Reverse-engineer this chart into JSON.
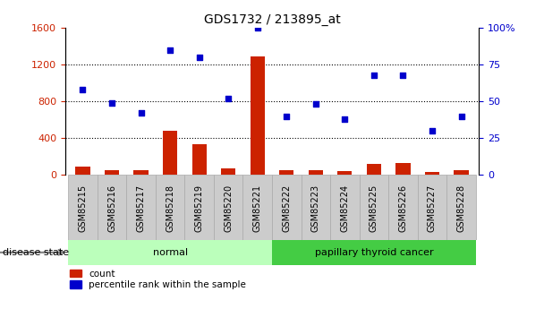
{
  "title": "GDS1732 / 213895_at",
  "samples": [
    "GSM85215",
    "GSM85216",
    "GSM85217",
    "GSM85218",
    "GSM85219",
    "GSM85220",
    "GSM85221",
    "GSM85222",
    "GSM85223",
    "GSM85224",
    "GSM85225",
    "GSM85226",
    "GSM85227",
    "GSM85228"
  ],
  "count_values": [
    90,
    55,
    50,
    480,
    330,
    75,
    1290,
    55,
    55,
    40,
    120,
    130,
    30,
    55
  ],
  "percentile_values": [
    58,
    49,
    42,
    85,
    80,
    52,
    100,
    40,
    48,
    38,
    68,
    68,
    30,
    40
  ],
  "groups": [
    {
      "label": "normal",
      "start": 0,
      "end": 7,
      "color": "#bbffbb"
    },
    {
      "label": "papillary thyroid cancer",
      "start": 7,
      "end": 14,
      "color": "#44cc44"
    }
  ],
  "ylim_left": [
    0,
    1600
  ],
  "ylim_right": [
    0,
    100
  ],
  "yticks_left": [
    0,
    400,
    800,
    1200,
    1600
  ],
  "yticks_right": [
    0,
    25,
    50,
    75,
    100
  ],
  "bar_color": "#cc2200",
  "dot_color": "#0000cc",
  "bg_color": "#ffffff",
  "legend_count_label": "count",
  "legend_percentile_label": "percentile rank within the sample",
  "disease_state_label": "disease state",
  "left_tick_color": "#cc2200",
  "right_tick_color": "#0000cc",
  "tick_bg_color": "#cccccc",
  "tick_border_color": "#aaaaaa"
}
